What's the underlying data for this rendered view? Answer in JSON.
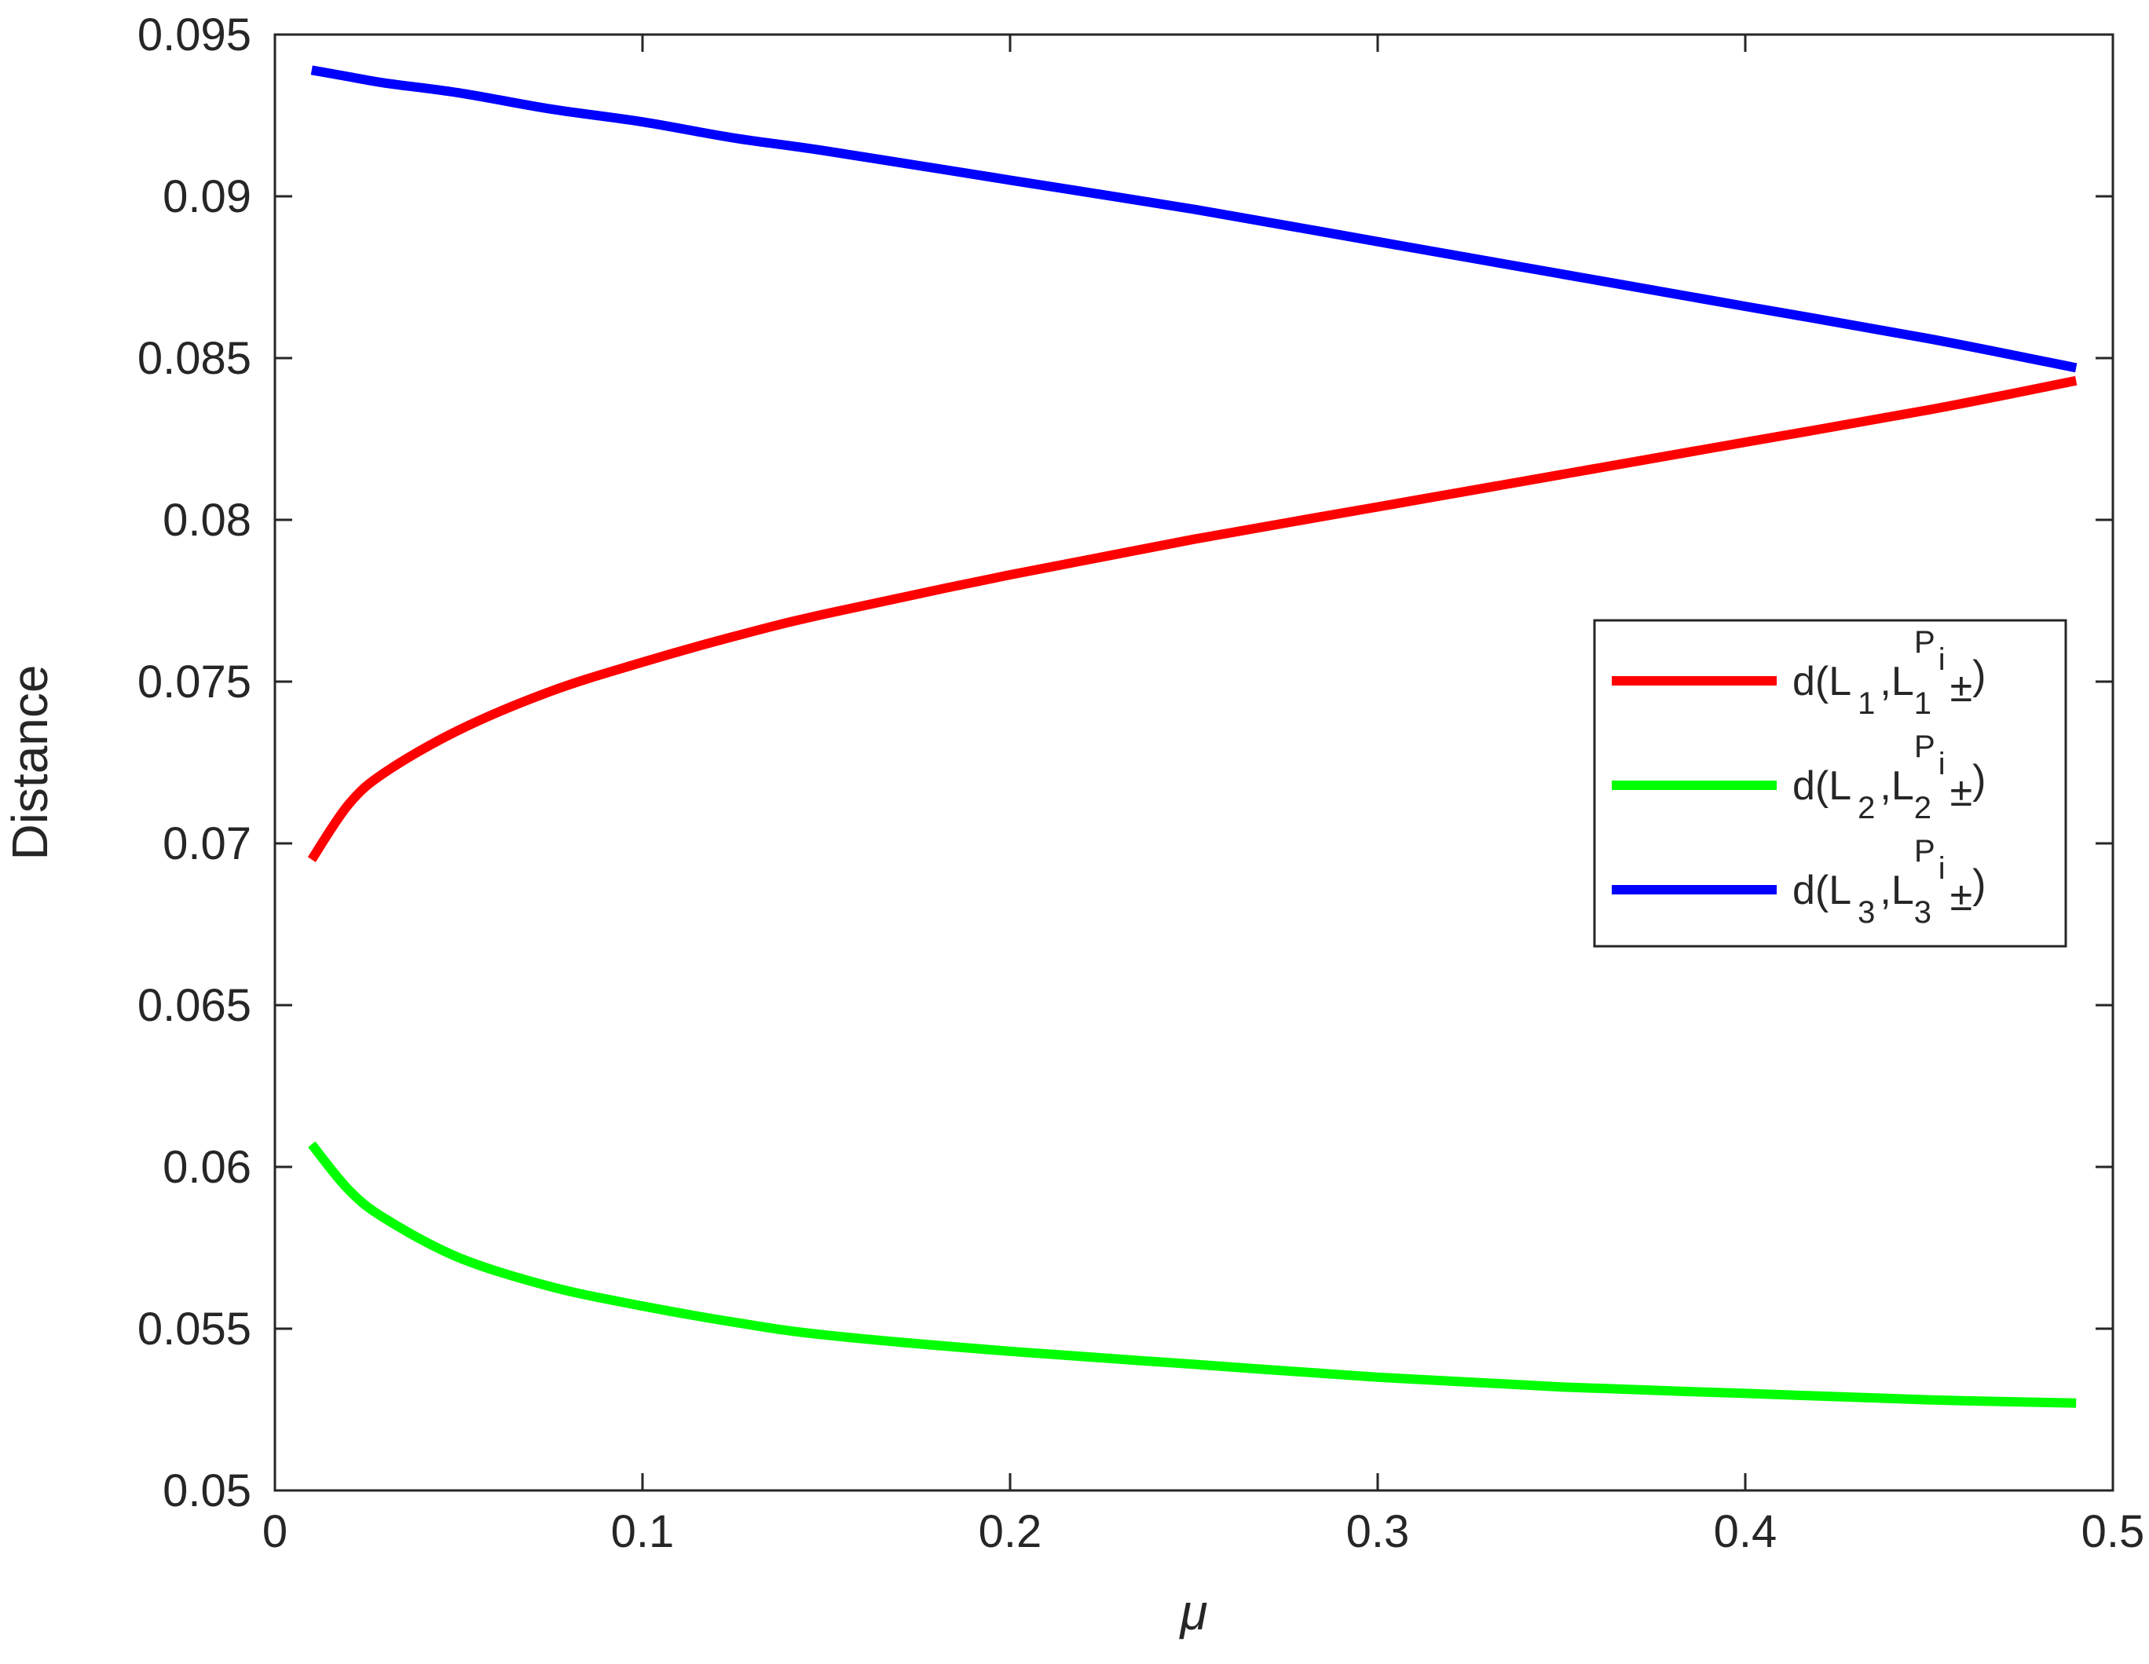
{
  "chart_data": {
    "type": "line",
    "xlabel": "μ",
    "ylabel": "Distance",
    "xlim": [
      0,
      0.5
    ],
    "ylim": [
      0.05,
      0.095
    ],
    "xticks": [
      "0",
      "0.1",
      "0.2",
      "0.3",
      "0.4",
      "0.5"
    ],
    "yticks": [
      "0.05",
      "0.055",
      "0.06",
      "0.065",
      "0.07",
      "0.075",
      "0.08",
      "0.085",
      "0.09",
      "0.095"
    ],
    "grid": false,
    "legend_position": "right",
    "x": [
      0.01,
      0.02,
      0.03,
      0.05,
      0.075,
      0.1,
      0.125,
      0.15,
      0.2,
      0.25,
      0.3,
      0.35,
      0.4,
      0.45,
      0.49
    ],
    "series": [
      {
        "legend": {
          "base": "d(L",
          "sub": "1",
          "mid": ",L",
          "sub2": "1",
          "sup": "P",
          "supsub": "i",
          "pm": "±",
          "close": ")"
        },
        "color": "#ff0000",
        "values": [
          0.0695,
          0.0712,
          0.0722,
          0.0735,
          0.0747,
          0.0756,
          0.0764,
          0.0771,
          0.0783,
          0.0794,
          0.0804,
          0.0814,
          0.0824,
          0.0834,
          0.0843
        ]
      },
      {
        "legend": {
          "base": "d(L",
          "sub": "2",
          "mid": ",L",
          "sub2": "2",
          "sup": "P",
          "supsub": "i",
          "pm": "±",
          "close": ")"
        },
        "color": "#00ff00",
        "values": [
          0.0607,
          0.0593,
          0.0584,
          0.0572,
          0.0563,
          0.0557,
          0.0552,
          0.0548,
          0.0543,
          0.0539,
          0.0535,
          0.0532,
          0.053,
          0.0528,
          0.0527
        ]
      },
      {
        "legend": {
          "base": "d(L",
          "sub": "3",
          "mid": ",L",
          "sub2": "3",
          "sup": "P",
          "supsub": "i",
          "pm": "±",
          "close": ")"
        },
        "color": "#0000ff",
        "values": [
          0.0939,
          0.0937,
          0.0935,
          0.0932,
          0.0927,
          0.0923,
          0.0918,
          0.0914,
          0.0905,
          0.0896,
          0.0886,
          0.0876,
          0.0866,
          0.0856,
          0.0847
        ]
      }
    ]
  }
}
